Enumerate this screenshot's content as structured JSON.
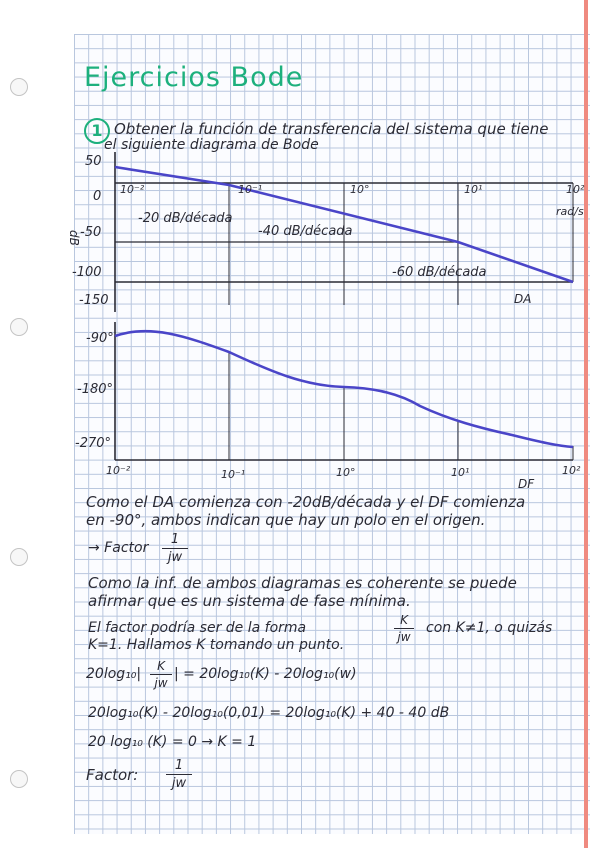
{
  "title": "Ejercicios Bode",
  "exercise_number": "1",
  "statement": [
    "Obtener la función de transferencia del sistema que tiene",
    "el siguiente diagrama de Bode"
  ],
  "magnitude_plot": {
    "y_axis_label": "dB",
    "y_ticks": [
      "50",
      "0",
      "-50",
      "-100",
      "-150"
    ],
    "freq_ticks": [
      "10⁻²",
      "10⁻¹",
      "10°",
      "10¹",
      "10²"
    ],
    "unit": "rad/s",
    "slopes": [
      "-20 dB/década",
      "-40 dB/década",
      "-60 dB/década"
    ],
    "tag": "DA"
  },
  "phase_plot": {
    "y_ticks": [
      "-90°",
      "-180°",
      "-270°"
    ],
    "freq_ticks": [
      "10⁻²",
      "10⁻¹",
      "10°",
      "10¹",
      "10²"
    ],
    "tag": "DF"
  },
  "notes": {
    "line1": [
      "Como el DA comienza con -20dB/década y el DF comienza",
      "en -90°, ambos indican que hay un polo en el origen."
    ],
    "factor_label": "→ Factor",
    "factor_num": "1",
    "factor_den": "jw",
    "line2": [
      "Como la inf. de ambos diagramas es coherente se puede",
      "afirmar que es un sistema de fase mínima."
    ],
    "line3_pre": "El factor podría ser de la forma",
    "line3_frac_num": "K",
    "line3_frac_den": "jw",
    "line3_post": "con K≠1, o quizás",
    "line4": "K=1. Hallamos K tomando un punto.",
    "eq1_pre": "20log₁₀|",
    "eq1_num": "K",
    "eq1_den": "jw",
    "eq1_post": "| = 20log₁₀(K) - 20log₁₀(w)",
    "eq2": "20log₁₀(K) - 20log₁₀(0,01) = 20log₁₀(K) + 40 - 40 dB",
    "eq3": "20 log₁₀ (K) = 0  →  K = 1",
    "final_label": "Factor:",
    "final_num": "1",
    "final_den": "jw"
  },
  "colors": {
    "ink": "#2b2b35",
    "curve": "#4a45c8",
    "title": "#1db07d",
    "grid": "#b8c6de",
    "margin": "#ef8a80"
  }
}
